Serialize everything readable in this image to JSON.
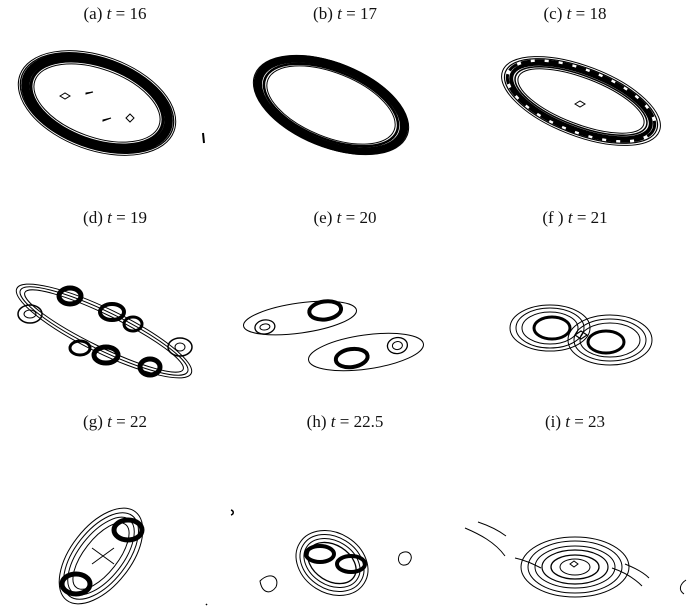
{
  "panels": [
    {
      "letter": "(a)",
      "var": "t",
      "eq": "= 16"
    },
    {
      "letter": "(b)",
      "var": "t",
      "eq": "= 17"
    },
    {
      "letter": "(c)",
      "var": "t",
      "eq": "= 18"
    },
    {
      "letter": "(d)",
      "var": "t",
      "eq": "= 19"
    },
    {
      "letter": "(e)",
      "var": "t",
      "eq": "= 20"
    },
    {
      "letter": "(f )",
      "var": "t",
      "eq": "= 21"
    },
    {
      "letter": "(g)",
      "var": "t",
      "eq": "= 22"
    },
    {
      "letter": "(h)",
      "var": "t",
      "eq": "= 22.5"
    },
    {
      "letter": "(i)",
      "var": "t",
      "eq": "= 23"
    }
  ]
}
